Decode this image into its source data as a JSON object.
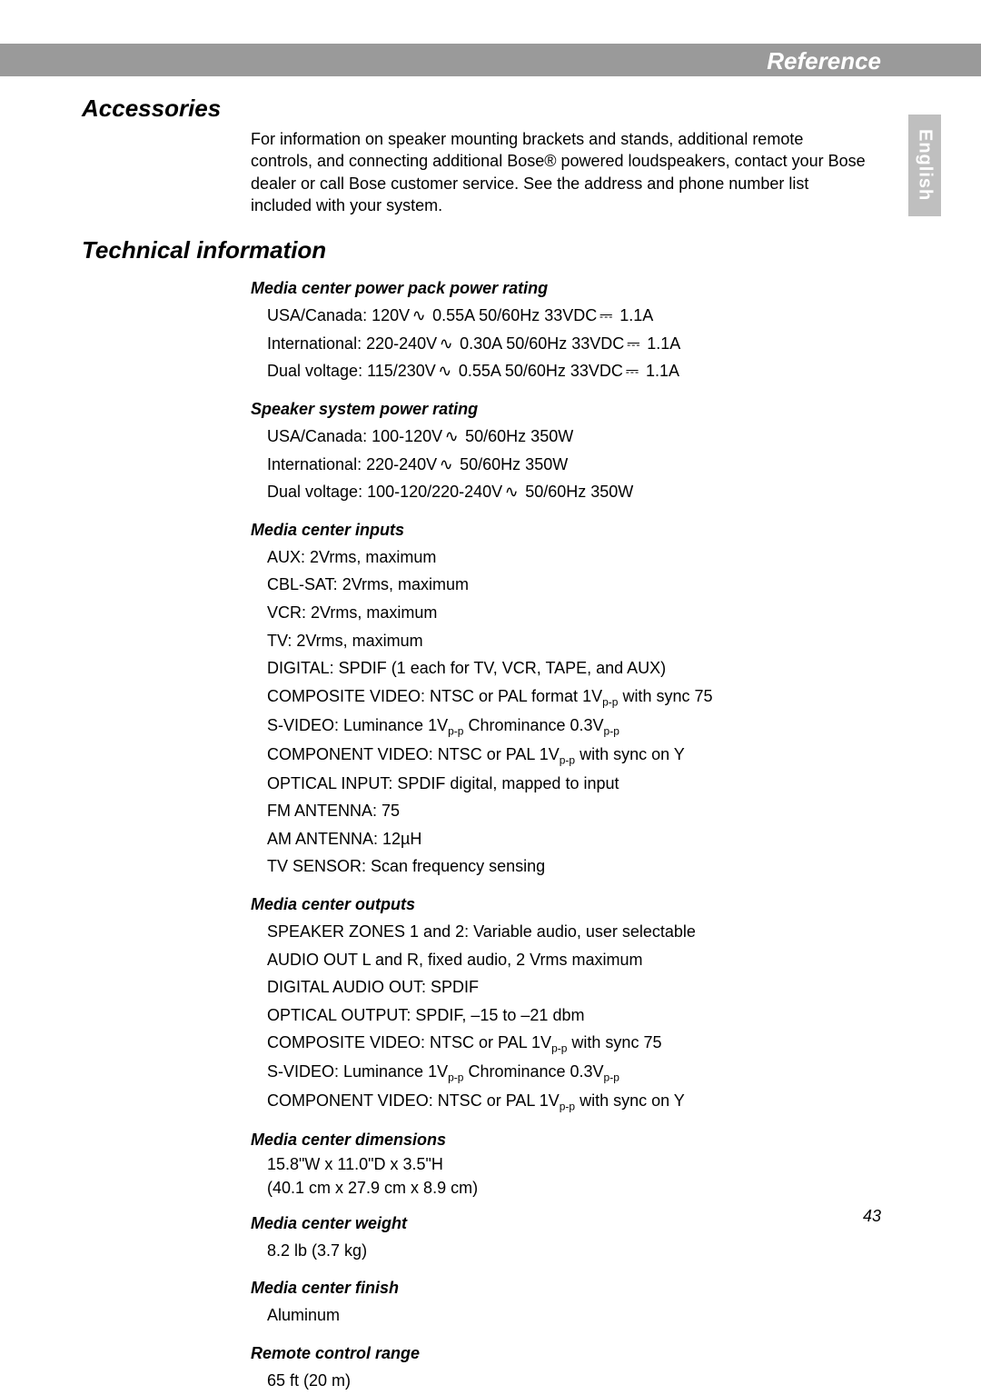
{
  "colors": {
    "topbar_bg": "#9a9a9a",
    "topbar_text": "#ffffff",
    "sidetab_bg": "#bfbfbf",
    "sidetab_text": "#ffffff",
    "body_text": "#000000",
    "page_bg": "#ffffff"
  },
  "fontsizes": {
    "topbar": 26,
    "section": 26,
    "subhead": 18,
    "body": 18,
    "sidetab": 20,
    "pagenum": 18
  },
  "header": {
    "reference": "Reference",
    "language": "English"
  },
  "accessories": {
    "title": "Accessories",
    "para": "For information on speaker mounting brackets and stands, additional remote controls, and connecting additional Bose® powered loudspeakers, contact your Bose dealer or call Bose customer service. See the address and phone number list included with your system."
  },
  "technical": {
    "title": "Technical information",
    "symbols": {
      "ac": "∿",
      "dc": "⎓"
    },
    "sections": {
      "power_pack": {
        "title": "Media center power pack power rating",
        "lines": [
          {
            "pre": "USA/Canada: 120V",
            "sym1": "ac",
            "mid": " 0.55A 50/60Hz 33VDC",
            "sym2": "dc",
            "post": " 1.1A"
          },
          {
            "pre": "International: 220-240V",
            "sym1": "ac",
            "mid": " 0.30A 50/60Hz 33VDC",
            "sym2": "dc",
            "post": " 1.1A"
          },
          {
            "pre": "Dual voltage: 115/230V",
            "sym1": "ac",
            "mid": " 0.55A 50/60Hz 33VDC",
            "sym2": "dc",
            "post": " 1.1A"
          }
        ]
      },
      "speaker_power": {
        "title": "Speaker system power rating",
        "lines": [
          {
            "pre": "USA/Canada: 100-120V",
            "sym1": "ac",
            "post": " 50/60Hz 350W"
          },
          {
            "pre": "International: 220-240V",
            "sym1": "ac",
            "post": " 50/60Hz 350W"
          },
          {
            "pre": "Dual voltage: 100-120/220-240V",
            "sym1": "ac",
            "post": " 50/60Hz 350W"
          }
        ]
      },
      "inputs": {
        "title": "Media center inputs",
        "lines": [
          {
            "text": "AUX: 2Vrms, maximum"
          },
          {
            "text": "CBL-SAT: 2Vrms, maximum"
          },
          {
            "text": "VCR: 2Vrms, maximum"
          },
          {
            "text": "TV: 2Vrms, maximum"
          },
          {
            "text": "DIGITAL: SPDIF (1 each for TV, VCR, TAPE, and AUX)"
          },
          {
            "pre": "COMPOSITE VIDEO: NTSC or PAL format 1V",
            "sub1": "p-p",
            "post": " with sync 75"
          },
          {
            "pre": "S-VIDEO: Luminance 1V",
            "sub1": "p-p",
            "mid": " Chrominance 0.3V",
            "sub2": "p-p"
          },
          {
            "pre": "COMPONENT VIDEO: NTSC or PAL 1V",
            "sub1": "p-p",
            "post": " with sync on Y"
          },
          {
            "text": "OPTICAL INPUT: SPDIF digital, mapped to input"
          },
          {
            "text": "FM ANTENNA: 75"
          },
          {
            "text": "AM ANTENNA: 12µH"
          },
          {
            "text": "TV SENSOR: Scan frequency sensing"
          }
        ]
      },
      "outputs": {
        "title": "Media center outputs",
        "lines": [
          {
            "text": "SPEAKER ZONES 1 and 2: Variable audio, user selectable"
          },
          {
            "text": "AUDIO OUT L and R, fixed audio, 2 Vrms maximum"
          },
          {
            "text": "DIGITAL AUDIO OUT: SPDIF"
          },
          {
            "text": "OPTICAL OUTPUT: SPDIF, –15 to –21 dbm"
          },
          {
            "pre": "COMPOSITE VIDEO: NTSC or PAL 1V",
            "sub1": "p-p",
            "post": " with sync 75"
          },
          {
            "pre": "S-VIDEO: Luminance 1V",
            "sub1": "p-p",
            "mid": " Chrominance 0.3V",
            "sub2": "p-p"
          },
          {
            "pre": "COMPONENT VIDEO: NTSC or PAL 1V",
            "sub1": "p-p",
            "post": " with sync on Y"
          }
        ]
      },
      "dimensions": {
        "title": "Media center dimensions",
        "lines": [
          {
            "text": "15.8\"W x 11.0\"D x 3.5\"H"
          },
          {
            "text": "(40.1 cm x 27.9 cm x 8.9 cm)"
          }
        ]
      },
      "weight": {
        "title": "Media center weight",
        "lines": [
          {
            "text": "8.2 lb (3.7 kg)"
          }
        ]
      },
      "finish": {
        "title": "Media center finish",
        "lines": [
          {
            "text": "Aluminum"
          }
        ]
      },
      "remote": {
        "title": "Remote control range",
        "lines": [
          {
            "text": "65 ft (20 m)"
          }
        ]
      }
    }
  },
  "pagenum": "43"
}
